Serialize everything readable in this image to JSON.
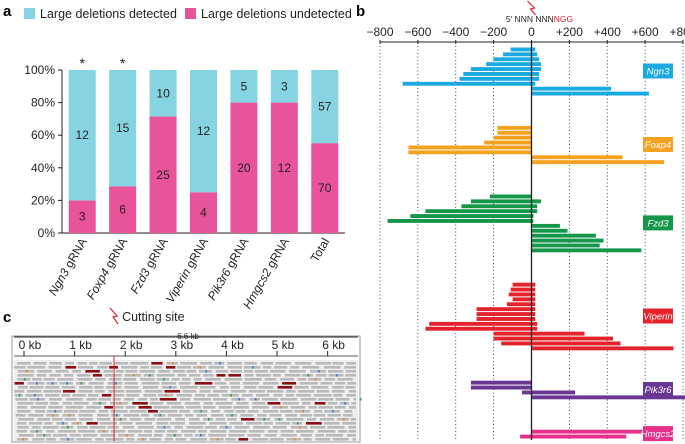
{
  "panel_labels": {
    "a": "a",
    "b": "b",
    "c": "c"
  },
  "colors": {
    "detected": "#86d3e1",
    "undetected": "#e8539a",
    "ngn3": "#1ba9e1",
    "foxp4": "#f5a21e",
    "fzd3": "#15974a",
    "viperin": "#e4232c",
    "pik3r6": "#6a3693",
    "hmgcs2": "#e6308a"
  },
  "legend": {
    "detected": "Large deletions detected",
    "undetected": "Large deletions undetected"
  },
  "chart_data": [
    {
      "type": "bar",
      "stacked": true,
      "title": "",
      "ylabel": "",
      "ylim": [
        0,
        100
      ],
      "yticks": [
        "0%",
        "20%",
        "40%",
        "60%",
        "80%",
        "100%"
      ],
      "categories": [
        "Ngn3 gRNA",
        "Foxp4 gRNA",
        "Fzd3 gRNA",
        "Viperin gRNA",
        "Pik3r6 gRNA",
        "Hmgcs2 gRNA",
        "Total"
      ],
      "series": [
        {
          "name": "Large deletions undetected",
          "counts": [
            3,
            6,
            25,
            4,
            20,
            12,
            70
          ]
        },
        {
          "name": "Large deletions detected",
          "counts": [
            12,
            15,
            10,
            12,
            5,
            3,
            57
          ]
        }
      ],
      "annotations": [
        "*",
        "*",
        "",
        "",
        "",
        "",
        ""
      ]
    },
    {
      "type": "bar",
      "orientation": "horizontal",
      "xlim": [
        -800,
        800
      ],
      "xticks": [
        "−800",
        "−600",
        "−400",
        "−200",
        "0",
        "+200",
        "+400",
        "+600",
        "+800"
      ],
      "header": {
        "prefix": "5′ NNN NNN",
        "pam": "NGG"
      },
      "groups": [
        {
          "name": "Ngn3",
          "color": "#1ba9e1",
          "deletions": [
            [
              -110,
              20
            ],
            [
              -150,
              30
            ],
            [
              -200,
              40
            ],
            [
              -240,
              50
            ],
            [
              -320,
              50
            ],
            [
              -360,
              40
            ],
            [
              -380,
              40
            ],
            [
              -680,
              20
            ],
            [
              0,
              420
            ],
            [
              0,
              620
            ]
          ]
        },
        {
          "name": "Foxp4",
          "color": "#f5a21e",
          "deletions": [
            [
              -180,
              0
            ],
            [
              -180,
              0
            ],
            [
              -200,
              0
            ],
            [
              -250,
              0
            ],
            [
              -650,
              0
            ],
            [
              -650,
              0
            ],
            [
              0,
              480
            ],
            [
              0,
              700
            ]
          ]
        },
        {
          "name": "Fzd3",
          "color": "#15974a",
          "deletions": [
            [
              -220,
              0
            ],
            [
              -320,
              50
            ],
            [
              -370,
              30
            ],
            [
              -560,
              30
            ],
            [
              -640,
              10
            ],
            [
              -760,
              10
            ],
            [
              0,
              150
            ],
            [
              0,
              190
            ],
            [
              0,
              340
            ],
            [
              0,
              380
            ],
            [
              0,
              360
            ],
            [
              0,
              580
            ]
          ]
        },
        {
          "name": "Viperin",
          "color": "#e4232c",
          "deletions": [
            [
              -100,
              20
            ],
            [
              -110,
              20
            ],
            [
              -120,
              20
            ],
            [
              -100,
              20
            ],
            [
              -130,
              20
            ],
            [
              -290,
              20
            ],
            [
              -290,
              20
            ],
            [
              -290,
              20
            ],
            [
              -540,
              30
            ],
            [
              -560,
              30
            ],
            [
              -200,
              280
            ],
            [
              -200,
              430
            ],
            [
              -160,
              470
            ],
            [
              0,
              750
            ]
          ]
        },
        {
          "name": "Pik3r6",
          "color": "#6a3693",
          "deletions": [
            [
              -320,
              0
            ],
            [
              -320,
              0
            ],
            [
              -50,
              230
            ],
            [
              0,
              820
            ]
          ]
        },
        {
          "name": "Hmgcs2",
          "color": "#e6308a",
          "deletions": [
            [
              0,
              680
            ],
            [
              -60,
              500
            ]
          ]
        }
      ]
    }
  ],
  "igv": {
    "cutting_site_label": "Cutting site",
    "span_label": "6.6 kb",
    "ticks": [
      "0 kb",
      "1 kb",
      "2 kb",
      "3 kb",
      "4 kb",
      "5 kb",
      "6 kb"
    ]
  }
}
